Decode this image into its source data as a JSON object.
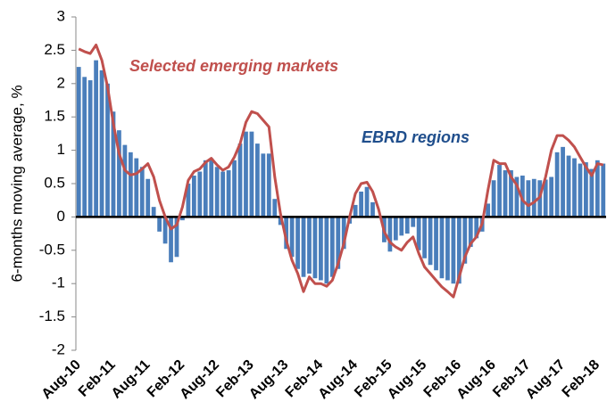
{
  "chart_data": {
    "type": "bar-line",
    "y_label": "6-months moving average, %",
    "categories": [
      "Aug-10",
      null,
      null,
      null,
      null,
      null,
      "Feb-11",
      null,
      null,
      null,
      null,
      null,
      "Aug-11",
      null,
      null,
      null,
      null,
      null,
      "Feb-12",
      null,
      null,
      null,
      null,
      null,
      "Aug-12",
      null,
      null,
      null,
      null,
      null,
      "Feb-13",
      null,
      null,
      null,
      null,
      null,
      "Aug-13",
      null,
      null,
      null,
      null,
      null,
      "Feb-14",
      null,
      null,
      null,
      null,
      null,
      "Aug-14",
      null,
      null,
      null,
      null,
      null,
      "Feb-15",
      null,
      null,
      null,
      null,
      null,
      "Aug-15",
      null,
      null,
      null,
      null,
      null,
      "Feb-16",
      null,
      null,
      null,
      null,
      null,
      "Aug-16",
      null,
      null,
      null,
      null,
      null,
      "Feb-17",
      null,
      null,
      null,
      null,
      null,
      "Aug-17",
      null,
      null,
      null,
      null,
      null,
      "Feb-18",
      null
    ],
    "series": [
      {
        "name": "EBRD regions",
        "color": "#4a7ebb",
        "kind": "bar",
        "values": [
          2.25,
          2.1,
          2.05,
          2.35,
          2.2,
          2.0,
          1.58,
          1.3,
          1.08,
          0.97,
          0.88,
          0.75,
          0.57,
          0.15,
          -0.22,
          -0.4,
          -0.68,
          -0.6,
          -0.05,
          0.5,
          0.62,
          0.68,
          0.85,
          0.88,
          0.75,
          0.68,
          0.7,
          0.85,
          1.1,
          1.28,
          1.28,
          1.1,
          0.95,
          0.95,
          0.27,
          -0.12,
          -0.48,
          -0.6,
          -0.78,
          -0.9,
          -0.85,
          -0.92,
          -0.95,
          -1.0,
          -0.9,
          -0.78,
          -0.48,
          -0.1,
          0.18,
          0.38,
          0.45,
          0.22,
          0.0,
          -0.38,
          -0.52,
          -0.35,
          -0.28,
          -0.25,
          -0.15,
          -0.5,
          -0.62,
          -0.72,
          -0.8,
          -0.92,
          -0.95,
          -1.0,
          -1.0,
          -0.7,
          -0.45,
          -0.32,
          -0.22,
          0.2,
          0.55,
          0.78,
          0.7,
          0.7,
          0.6,
          0.62,
          0.55,
          0.57,
          0.55,
          0.56,
          0.6,
          0.97,
          1.05,
          0.92,
          0.88,
          0.8,
          0.82,
          0.72,
          0.85,
          0.8
        ]
      },
      {
        "name": "Selected emerging markets",
        "color": "#c0504d",
        "kind": "line",
        "values": [
          2.52,
          2.48,
          2.45,
          2.58,
          2.35,
          1.95,
          1.4,
          0.95,
          0.7,
          0.63,
          0.65,
          0.72,
          0.8,
          0.6,
          0.25,
          0.0,
          -0.18,
          -0.12,
          0.15,
          0.55,
          0.68,
          0.72,
          0.82,
          0.88,
          0.78,
          0.7,
          0.75,
          0.9,
          1.1,
          1.42,
          1.58,
          1.55,
          1.45,
          1.35,
          0.6,
          0.05,
          -0.35,
          -0.65,
          -0.85,
          -1.12,
          -0.9,
          -1.0,
          -1.0,
          -1.04,
          -0.95,
          -0.7,
          -0.4,
          0.0,
          0.35,
          0.5,
          0.52,
          0.38,
          0.12,
          -0.22,
          -0.38,
          -0.45,
          -0.5,
          -0.38,
          -0.3,
          -0.55,
          -0.75,
          -0.85,
          -0.95,
          -1.05,
          -1.12,
          -1.2,
          -0.9,
          -0.6,
          -0.4,
          -0.3,
          -0.1,
          0.4,
          0.85,
          0.8,
          0.8,
          0.6,
          0.48,
          0.25,
          0.17,
          0.22,
          0.3,
          0.6,
          1.0,
          1.22,
          1.22,
          1.15,
          1.05,
          0.9,
          0.75,
          0.62,
          0.8,
          0.78
        ]
      }
    ],
    "ylim": [
      -2,
      3
    ],
    "yticks": [
      -2,
      -1.5,
      -1,
      -0.5,
      0,
      0.5,
      1,
      1.5,
      2,
      2.5,
      3
    ]
  }
}
